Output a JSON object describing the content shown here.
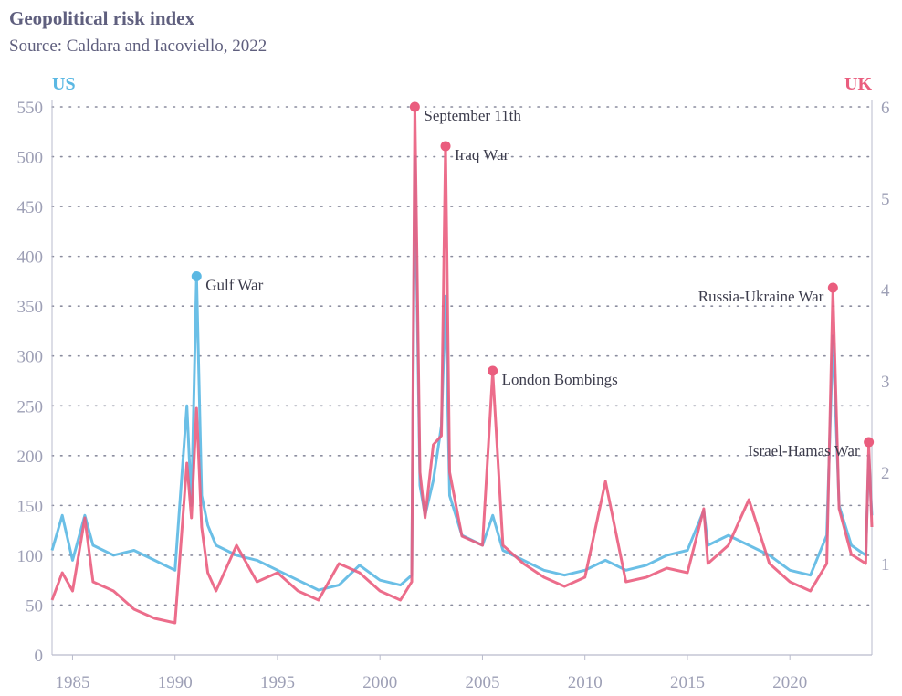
{
  "header": {
    "title": "Geopolitical risk index",
    "subtitle": "Source: Caldara and Iacoviello, 2022"
  },
  "colors": {
    "us": "#5bb8e3",
    "uk": "#ea5d7e",
    "overlap": "#8c4a79",
    "axis_text": "#9ea0b6",
    "grid": "#8a8c9e"
  },
  "chart_data": {
    "type": "line",
    "title": "Geopolitical risk index",
    "subtitle": "Source: Caldara and Iacoviello, 2022",
    "x_range": [
      1984,
      2024
    ],
    "x_ticks": [
      1985,
      1990,
      1995,
      2000,
      2005,
      2010,
      2015,
      2020
    ],
    "left_axis": {
      "label": "US",
      "range": [
        0,
        550
      ],
      "ticks": [
        0,
        50,
        100,
        150,
        200,
        250,
        300,
        350,
        400,
        450,
        500,
        550
      ]
    },
    "right_axis": {
      "label": "UK",
      "range": [
        0,
        6
      ],
      "ticks": [
        1,
        2,
        3,
        4,
        5,
        6
      ]
    },
    "grid": "horizontal dotted",
    "series": [
      {
        "name": "US",
        "axis": "left",
        "points": [
          [
            1984.0,
            105
          ],
          [
            1984.5,
            140
          ],
          [
            1985.0,
            95
          ],
          [
            1985.6,
            140
          ],
          [
            1986.0,
            110
          ],
          [
            1987.0,
            100
          ],
          [
            1988.0,
            105
          ],
          [
            1989.0,
            95
          ],
          [
            1990.0,
            85
          ],
          [
            1990.58,
            250
          ],
          [
            1990.8,
            150
          ],
          [
            1991.05,
            380
          ],
          [
            1991.3,
            160
          ],
          [
            1991.6,
            130
          ],
          [
            1992.0,
            110
          ],
          [
            1993.0,
            100
          ],
          [
            1994.0,
            95
          ],
          [
            1995.0,
            85
          ],
          [
            1996.0,
            75
          ],
          [
            1997.0,
            65
          ],
          [
            1998.0,
            70
          ],
          [
            1999.0,
            90
          ],
          [
            2000.0,
            75
          ],
          [
            2001.0,
            70
          ],
          [
            2001.55,
            80
          ],
          [
            2001.7,
            500
          ],
          [
            2001.95,
            170
          ],
          [
            2002.2,
            140
          ],
          [
            2002.6,
            175
          ],
          [
            2003.0,
            230
          ],
          [
            2003.2,
            360
          ],
          [
            2003.4,
            160
          ],
          [
            2004.0,
            120
          ],
          [
            2005.0,
            110
          ],
          [
            2005.5,
            140
          ],
          [
            2006.0,
            105
          ],
          [
            2007.0,
            95
          ],
          [
            2008.0,
            85
          ],
          [
            2009.0,
            80
          ],
          [
            2010.0,
            85
          ],
          [
            2011.0,
            95
          ],
          [
            2012.0,
            85
          ],
          [
            2013.0,
            90
          ],
          [
            2014.0,
            100
          ],
          [
            2015.0,
            105
          ],
          [
            2015.8,
            145
          ],
          [
            2016.0,
            110
          ],
          [
            2017.0,
            120
          ],
          [
            2018.0,
            110
          ],
          [
            2019.0,
            100
          ],
          [
            2020.0,
            85
          ],
          [
            2021.0,
            80
          ],
          [
            2021.8,
            120
          ],
          [
            2022.1,
            320
          ],
          [
            2022.4,
            150
          ],
          [
            2023.0,
            110
          ],
          [
            2023.7,
            100
          ],
          [
            2023.85,
            200
          ],
          [
            2024.0,
            140
          ]
        ]
      },
      {
        "name": "UK",
        "axis": "right",
        "points": [
          [
            1984.0,
            0.6
          ],
          [
            1984.5,
            0.9
          ],
          [
            1985.0,
            0.7
          ],
          [
            1985.6,
            1.5
          ],
          [
            1986.0,
            0.8
          ],
          [
            1987.0,
            0.7
          ],
          [
            1988.0,
            0.5
          ],
          [
            1989.0,
            0.4
          ],
          [
            1990.0,
            0.35
          ],
          [
            1990.58,
            2.1
          ],
          [
            1990.8,
            1.5
          ],
          [
            1991.05,
            2.7
          ],
          [
            1991.3,
            1.4
          ],
          [
            1991.6,
            0.9
          ],
          [
            1992.0,
            0.7
          ],
          [
            1993.0,
            1.2
          ],
          [
            1994.0,
            0.8
          ],
          [
            1995.0,
            0.9
          ],
          [
            1996.0,
            0.7
          ],
          [
            1997.0,
            0.6
          ],
          [
            1998.0,
            1.0
          ],
          [
            1999.0,
            0.9
          ],
          [
            2000.0,
            0.7
          ],
          [
            2001.0,
            0.6
          ],
          [
            2001.55,
            0.8
          ],
          [
            2001.7,
            6.0
          ],
          [
            2001.95,
            2.0
          ],
          [
            2002.2,
            1.5
          ],
          [
            2002.6,
            2.3
          ],
          [
            2003.0,
            2.4
          ],
          [
            2003.2,
            5.6
          ],
          [
            2003.4,
            2.0
          ],
          [
            2004.0,
            1.3
          ],
          [
            2005.0,
            1.2
          ],
          [
            2005.5,
            3.1
          ],
          [
            2006.0,
            1.2
          ],
          [
            2007.0,
            1.0
          ],
          [
            2008.0,
            0.85
          ],
          [
            2009.0,
            0.75
          ],
          [
            2010.0,
            0.85
          ],
          [
            2011.0,
            1.9
          ],
          [
            2012.0,
            0.8
          ],
          [
            2013.0,
            0.85
          ],
          [
            2014.0,
            0.95
          ],
          [
            2015.0,
            0.9
          ],
          [
            2015.8,
            1.6
          ],
          [
            2016.0,
            1.0
          ],
          [
            2017.0,
            1.2
          ],
          [
            2018.0,
            1.7
          ],
          [
            2019.0,
            1.0
          ],
          [
            2020.0,
            0.8
          ],
          [
            2021.0,
            0.7
          ],
          [
            2021.8,
            1.0
          ],
          [
            2022.1,
            4.0
          ],
          [
            2022.4,
            1.6
          ],
          [
            2023.0,
            1.1
          ],
          [
            2023.7,
            1.0
          ],
          [
            2023.85,
            2.3
          ],
          [
            2024.0,
            1.4
          ]
        ]
      }
    ],
    "annotations": [
      {
        "label": "Gulf War",
        "x": 1991.05,
        "y": 380,
        "axis": "left",
        "series": "US"
      },
      {
        "label": "September 11th",
        "x": 2001.7,
        "y": 6.0,
        "axis": "right",
        "series": "UK"
      },
      {
        "label": "Iraq War",
        "x": 2003.2,
        "y": 5.57,
        "axis": "right",
        "series": "UK"
      },
      {
        "label": "London Bombings",
        "x": 2005.5,
        "y": 3.11,
        "axis": "right",
        "series": "UK"
      },
      {
        "label": "Russia-Ukraine War",
        "x": 2022.1,
        "y": 4.02,
        "axis": "right",
        "series": "UK"
      },
      {
        "label": "Israel-Hamas War",
        "x": 2023.85,
        "y": 2.33,
        "axis": "right",
        "series": "UK"
      }
    ]
  }
}
